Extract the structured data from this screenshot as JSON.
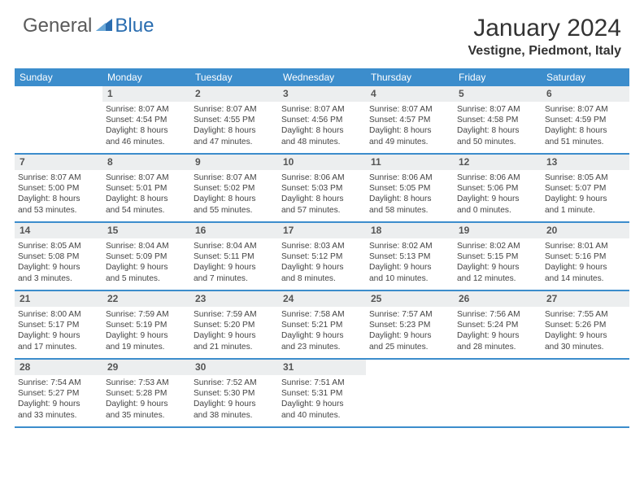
{
  "logo": {
    "text1": "General",
    "text2": "Blue"
  },
  "title": "January 2024",
  "location": "Vestigne, Piedmont, Italy",
  "colors": {
    "header_bg": "#3c8dcc",
    "header_text": "#ffffff",
    "daynum_bg": "#eceeef",
    "border": "#3c8dcc"
  },
  "dow": [
    "Sunday",
    "Monday",
    "Tuesday",
    "Wednesday",
    "Thursday",
    "Friday",
    "Saturday"
  ],
  "weeks": [
    [
      {
        "empty": true
      },
      {
        "num": "1",
        "sunrise": "Sunrise: 8:07 AM",
        "sunset": "Sunset: 4:54 PM",
        "day1": "Daylight: 8 hours",
        "day2": "and 46 minutes."
      },
      {
        "num": "2",
        "sunrise": "Sunrise: 8:07 AM",
        "sunset": "Sunset: 4:55 PM",
        "day1": "Daylight: 8 hours",
        "day2": "and 47 minutes."
      },
      {
        "num": "3",
        "sunrise": "Sunrise: 8:07 AM",
        "sunset": "Sunset: 4:56 PM",
        "day1": "Daylight: 8 hours",
        "day2": "and 48 minutes."
      },
      {
        "num": "4",
        "sunrise": "Sunrise: 8:07 AM",
        "sunset": "Sunset: 4:57 PM",
        "day1": "Daylight: 8 hours",
        "day2": "and 49 minutes."
      },
      {
        "num": "5",
        "sunrise": "Sunrise: 8:07 AM",
        "sunset": "Sunset: 4:58 PM",
        "day1": "Daylight: 8 hours",
        "day2": "and 50 minutes."
      },
      {
        "num": "6",
        "sunrise": "Sunrise: 8:07 AM",
        "sunset": "Sunset: 4:59 PM",
        "day1": "Daylight: 8 hours",
        "day2": "and 51 minutes."
      }
    ],
    [
      {
        "num": "7",
        "sunrise": "Sunrise: 8:07 AM",
        "sunset": "Sunset: 5:00 PM",
        "day1": "Daylight: 8 hours",
        "day2": "and 53 minutes."
      },
      {
        "num": "8",
        "sunrise": "Sunrise: 8:07 AM",
        "sunset": "Sunset: 5:01 PM",
        "day1": "Daylight: 8 hours",
        "day2": "and 54 minutes."
      },
      {
        "num": "9",
        "sunrise": "Sunrise: 8:07 AM",
        "sunset": "Sunset: 5:02 PM",
        "day1": "Daylight: 8 hours",
        "day2": "and 55 minutes."
      },
      {
        "num": "10",
        "sunrise": "Sunrise: 8:06 AM",
        "sunset": "Sunset: 5:03 PM",
        "day1": "Daylight: 8 hours",
        "day2": "and 57 minutes."
      },
      {
        "num": "11",
        "sunrise": "Sunrise: 8:06 AM",
        "sunset": "Sunset: 5:05 PM",
        "day1": "Daylight: 8 hours",
        "day2": "and 58 minutes."
      },
      {
        "num": "12",
        "sunrise": "Sunrise: 8:06 AM",
        "sunset": "Sunset: 5:06 PM",
        "day1": "Daylight: 9 hours",
        "day2": "and 0 minutes."
      },
      {
        "num": "13",
        "sunrise": "Sunrise: 8:05 AM",
        "sunset": "Sunset: 5:07 PM",
        "day1": "Daylight: 9 hours",
        "day2": "and 1 minute."
      }
    ],
    [
      {
        "num": "14",
        "sunrise": "Sunrise: 8:05 AM",
        "sunset": "Sunset: 5:08 PM",
        "day1": "Daylight: 9 hours",
        "day2": "and 3 minutes."
      },
      {
        "num": "15",
        "sunrise": "Sunrise: 8:04 AM",
        "sunset": "Sunset: 5:09 PM",
        "day1": "Daylight: 9 hours",
        "day2": "and 5 minutes."
      },
      {
        "num": "16",
        "sunrise": "Sunrise: 8:04 AM",
        "sunset": "Sunset: 5:11 PM",
        "day1": "Daylight: 9 hours",
        "day2": "and 7 minutes."
      },
      {
        "num": "17",
        "sunrise": "Sunrise: 8:03 AM",
        "sunset": "Sunset: 5:12 PM",
        "day1": "Daylight: 9 hours",
        "day2": "and 8 minutes."
      },
      {
        "num": "18",
        "sunrise": "Sunrise: 8:02 AM",
        "sunset": "Sunset: 5:13 PM",
        "day1": "Daylight: 9 hours",
        "day2": "and 10 minutes."
      },
      {
        "num": "19",
        "sunrise": "Sunrise: 8:02 AM",
        "sunset": "Sunset: 5:15 PM",
        "day1": "Daylight: 9 hours",
        "day2": "and 12 minutes."
      },
      {
        "num": "20",
        "sunrise": "Sunrise: 8:01 AM",
        "sunset": "Sunset: 5:16 PM",
        "day1": "Daylight: 9 hours",
        "day2": "and 14 minutes."
      }
    ],
    [
      {
        "num": "21",
        "sunrise": "Sunrise: 8:00 AM",
        "sunset": "Sunset: 5:17 PM",
        "day1": "Daylight: 9 hours",
        "day2": "and 17 minutes."
      },
      {
        "num": "22",
        "sunrise": "Sunrise: 7:59 AM",
        "sunset": "Sunset: 5:19 PM",
        "day1": "Daylight: 9 hours",
        "day2": "and 19 minutes."
      },
      {
        "num": "23",
        "sunrise": "Sunrise: 7:59 AM",
        "sunset": "Sunset: 5:20 PM",
        "day1": "Daylight: 9 hours",
        "day2": "and 21 minutes."
      },
      {
        "num": "24",
        "sunrise": "Sunrise: 7:58 AM",
        "sunset": "Sunset: 5:21 PM",
        "day1": "Daylight: 9 hours",
        "day2": "and 23 minutes."
      },
      {
        "num": "25",
        "sunrise": "Sunrise: 7:57 AM",
        "sunset": "Sunset: 5:23 PM",
        "day1": "Daylight: 9 hours",
        "day2": "and 25 minutes."
      },
      {
        "num": "26",
        "sunrise": "Sunrise: 7:56 AM",
        "sunset": "Sunset: 5:24 PM",
        "day1": "Daylight: 9 hours",
        "day2": "and 28 minutes."
      },
      {
        "num": "27",
        "sunrise": "Sunrise: 7:55 AM",
        "sunset": "Sunset: 5:26 PM",
        "day1": "Daylight: 9 hours",
        "day2": "and 30 minutes."
      }
    ],
    [
      {
        "num": "28",
        "sunrise": "Sunrise: 7:54 AM",
        "sunset": "Sunset: 5:27 PM",
        "day1": "Daylight: 9 hours",
        "day2": "and 33 minutes."
      },
      {
        "num": "29",
        "sunrise": "Sunrise: 7:53 AM",
        "sunset": "Sunset: 5:28 PM",
        "day1": "Daylight: 9 hours",
        "day2": "and 35 minutes."
      },
      {
        "num": "30",
        "sunrise": "Sunrise: 7:52 AM",
        "sunset": "Sunset: 5:30 PM",
        "day1": "Daylight: 9 hours",
        "day2": "and 38 minutes."
      },
      {
        "num": "31",
        "sunrise": "Sunrise: 7:51 AM",
        "sunset": "Sunset: 5:31 PM",
        "day1": "Daylight: 9 hours",
        "day2": "and 40 minutes."
      },
      {
        "empty": true
      },
      {
        "empty": true
      },
      {
        "empty": true
      }
    ]
  ]
}
